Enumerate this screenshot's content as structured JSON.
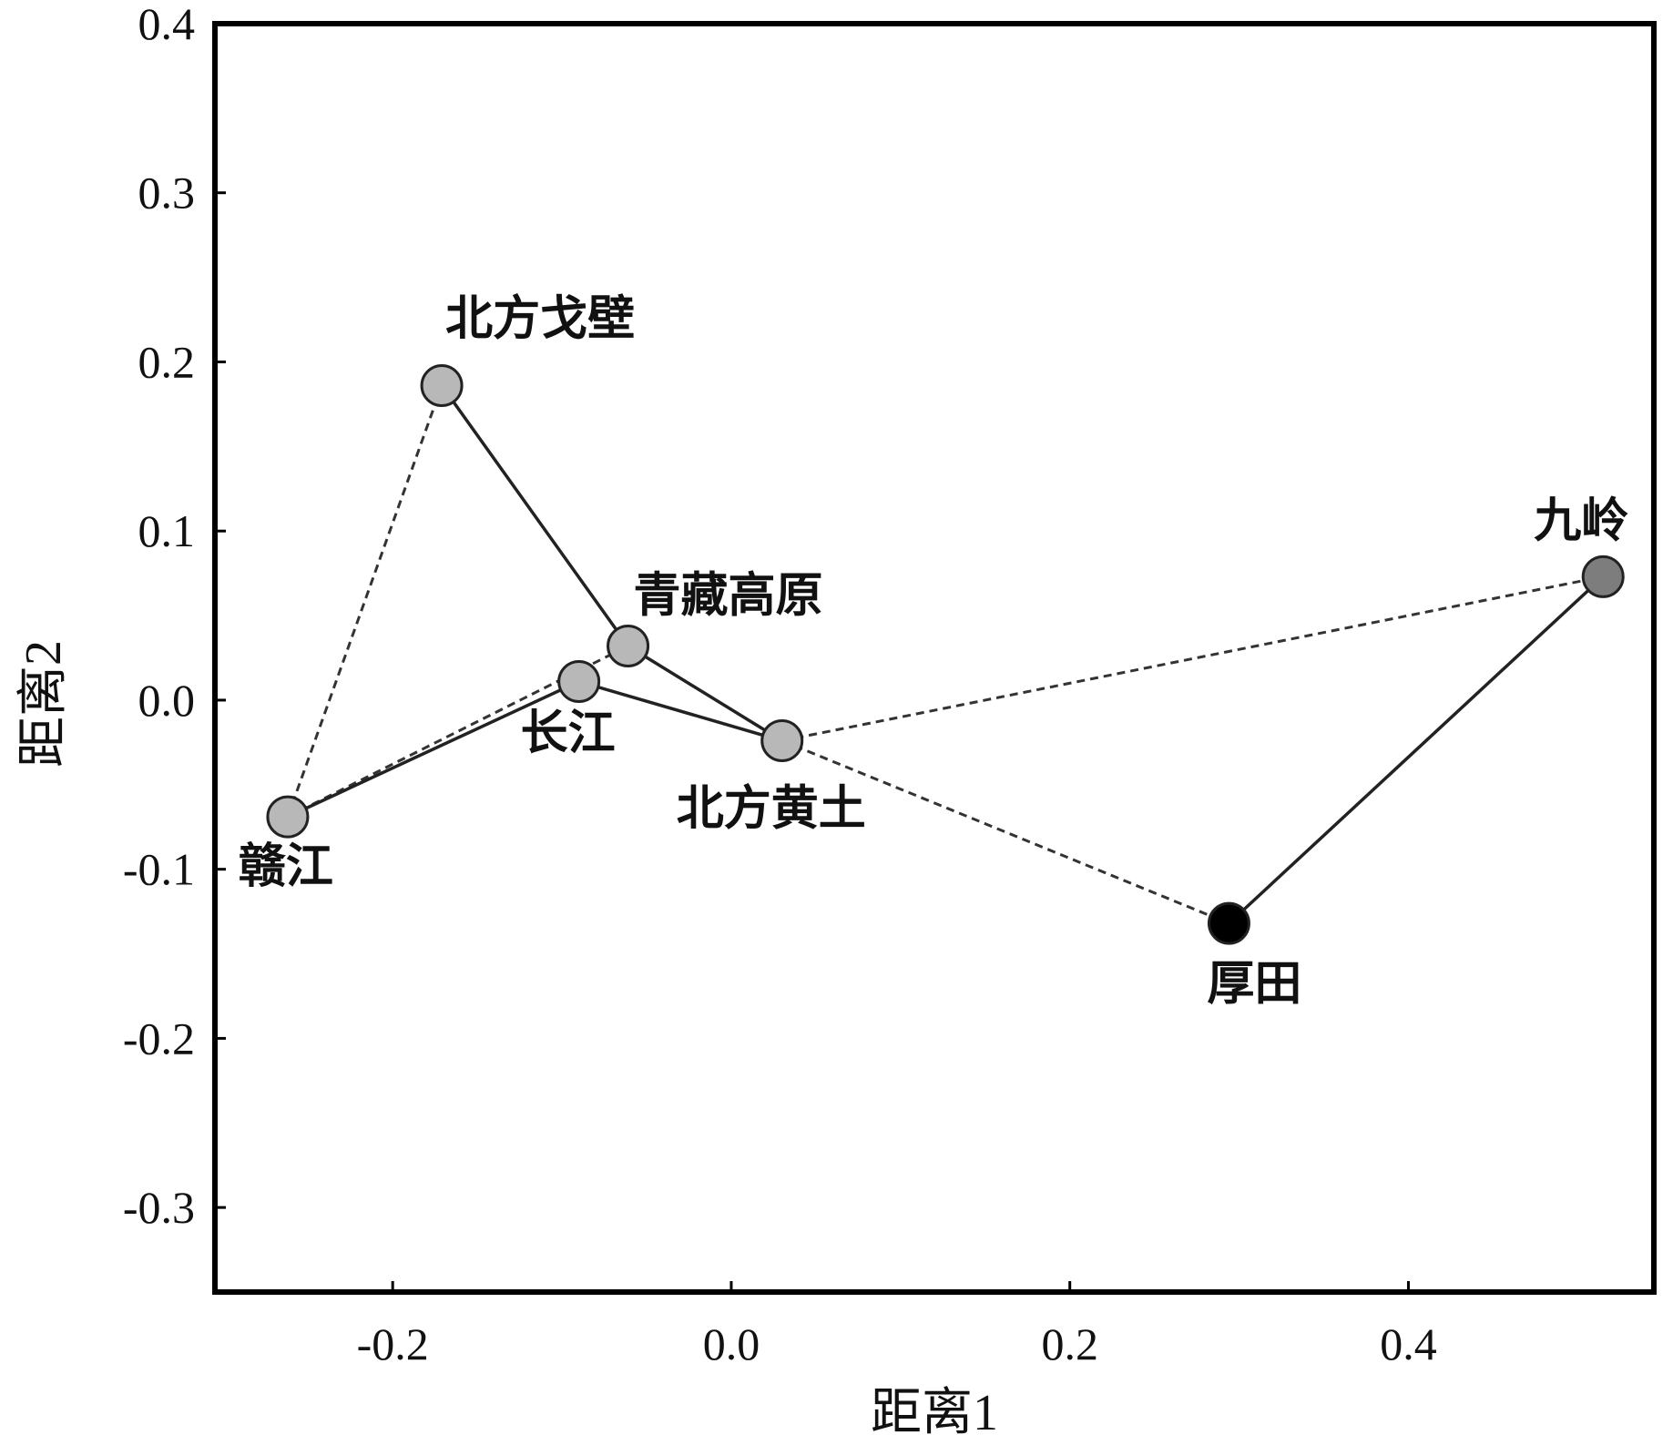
{
  "chart_data": {
    "type": "scatter",
    "title": "",
    "xlabel": "距离1",
    "ylabel": "距离2",
    "xlim": [
      -0.305,
      0.545
    ],
    "ylim": [
      -0.35,
      0.4
    ],
    "x_ticks": [
      {
        "value": -0.2,
        "label": "-0.2"
      },
      {
        "value": 0.0,
        "label": "0.0"
      },
      {
        "value": 0.2,
        "label": "0.2"
      },
      {
        "value": 0.4,
        "label": "0.4"
      }
    ],
    "y_ticks": [
      {
        "value": 0.4,
        "label": "0.4"
      },
      {
        "value": 0.3,
        "label": "0.3"
      },
      {
        "value": 0.2,
        "label": "0.2"
      },
      {
        "value": 0.1,
        "label": "0.1"
      },
      {
        "value": 0.0,
        "label": "0.0"
      },
      {
        "value": -0.1,
        "label": "-0.1"
      },
      {
        "value": -0.2,
        "label": "-0.2"
      },
      {
        "value": -0.3,
        "label": "-0.3"
      }
    ],
    "grid": false,
    "points": [
      {
        "id": "ganjiang",
        "label": "赣江",
        "x": -0.262,
        "y": -0.069,
        "color": "#b8b8b8",
        "label_pos": "below"
      },
      {
        "id": "gobi",
        "label": "北方戈壁",
        "x": -0.171,
        "y": 0.186,
        "color": "#b8b8b8",
        "label_pos": "above-right"
      },
      {
        "id": "qingzang",
        "label": "青藏高原",
        "x": -0.061,
        "y": 0.032,
        "color": "#b8b8b8",
        "label_pos": "above-right"
      },
      {
        "id": "changjiang",
        "label": "长江",
        "x": -0.09,
        "y": 0.011,
        "color": "#b8b8b8",
        "label_pos": "below"
      },
      {
        "id": "huangtu",
        "label": "北方黄土",
        "x": 0.03,
        "y": -0.024,
        "color": "#b8b8b8",
        "label_pos": "below"
      },
      {
        "id": "houtian",
        "label": "厚田",
        "x": 0.294,
        "y": -0.132,
        "color": "#000000",
        "label_pos": "below"
      },
      {
        "id": "jiuling",
        "label": "九岭",
        "x": 0.515,
        "y": 0.073,
        "color": "#7d7d7d",
        "label_pos": "above"
      }
    ],
    "solid_connections": [
      [
        "gobi",
        "qingzang"
      ],
      [
        "qingzang",
        "huangtu"
      ],
      [
        "changjiang",
        "huangtu"
      ],
      [
        "ganjiang",
        "changjiang"
      ],
      [
        "houtian",
        "jiuling"
      ]
    ],
    "dashed_connections": [
      [
        "ganjiang",
        "gobi"
      ],
      [
        "ganjiang",
        "qingzang"
      ],
      [
        "huangtu",
        "jiuling"
      ],
      [
        "huangtu",
        "houtian"
      ]
    ]
  }
}
